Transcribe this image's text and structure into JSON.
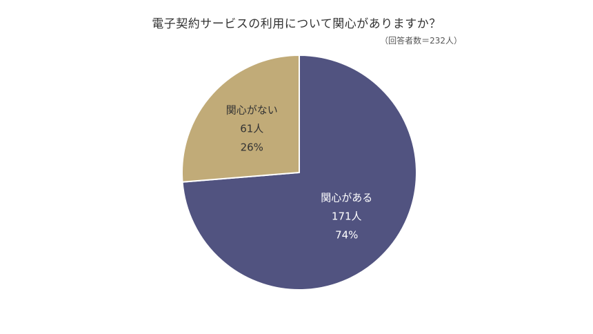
{
  "chart_data": {
    "type": "pie",
    "title": "電子契約サービスの利用について関心がありますか？",
    "subtitle": "（回答者数＝232人）",
    "total": 232,
    "slices": [
      {
        "name": "関心がある",
        "count_label": "171人",
        "percent_label": "74%",
        "value": 171,
        "color": "#515380",
        "label_color": "#ffffff"
      },
      {
        "name": "関心がない",
        "count_label": "61人",
        "percent_label": "26%",
        "value": 61,
        "color": "#c1ab78",
        "label_color": "#333333"
      }
    ]
  }
}
